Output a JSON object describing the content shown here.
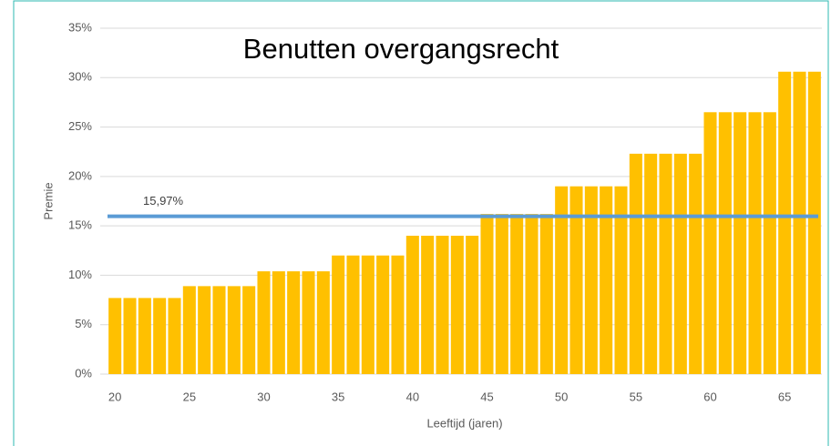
{
  "chart_data": {
    "type": "bar",
    "title": "Benutten overgangsrecht",
    "y_label": "Premie",
    "x_label": "Leeftijd (jaren)",
    "x": [
      20,
      21,
      22,
      23,
      24,
      25,
      26,
      27,
      28,
      29,
      30,
      31,
      32,
      33,
      34,
      35,
      36,
      37,
      38,
      39,
      40,
      41,
      42,
      43,
      44,
      45,
      46,
      47,
      48,
      49,
      50,
      51,
      52,
      53,
      54,
      55,
      56,
      57,
      58,
      59,
      60,
      61,
      62,
      63,
      64,
      65,
      66,
      67
    ],
    "values": [
      7.7,
      7.7,
      7.7,
      7.7,
      7.7,
      8.9,
      8.9,
      8.9,
      8.9,
      8.9,
      10.4,
      10.4,
      10.4,
      10.4,
      10.4,
      12.0,
      12.0,
      12.0,
      12.0,
      12.0,
      14.0,
      14.0,
      14.0,
      14.0,
      14.0,
      16.2,
      16.2,
      16.2,
      16.2,
      16.2,
      19.0,
      19.0,
      19.0,
      19.0,
      19.0,
      22.3,
      22.3,
      22.3,
      22.3,
      22.3,
      26.5,
      26.5,
      26.5,
      26.5,
      26.5,
      30.6,
      30.6,
      30.6
    ],
    "color": "#ffc000",
    "xlim": [
      19.5,
      67.5
    ],
    "xticks": [
      20,
      25,
      30,
      35,
      40,
      45,
      50,
      55,
      60,
      65
    ],
    "ylim": [
      0,
      35
    ],
    "yticks": [
      {
        "value": 0,
        "label": "0%"
      },
      {
        "value": 5,
        "label": "5%"
      },
      {
        "value": 10,
        "label": "10%"
      },
      {
        "value": 15,
        "label": "15%"
      },
      {
        "value": 20,
        "label": "20%"
      },
      {
        "value": 25,
        "label": "25%"
      },
      {
        "value": 30,
        "label": "30%"
      },
      {
        "value": 35,
        "label": "35%"
      }
    ],
    "grid": true,
    "reference_line": {
      "value": 15.97,
      "label": "15,97%",
      "color": "#5b9bd5"
    }
  }
}
